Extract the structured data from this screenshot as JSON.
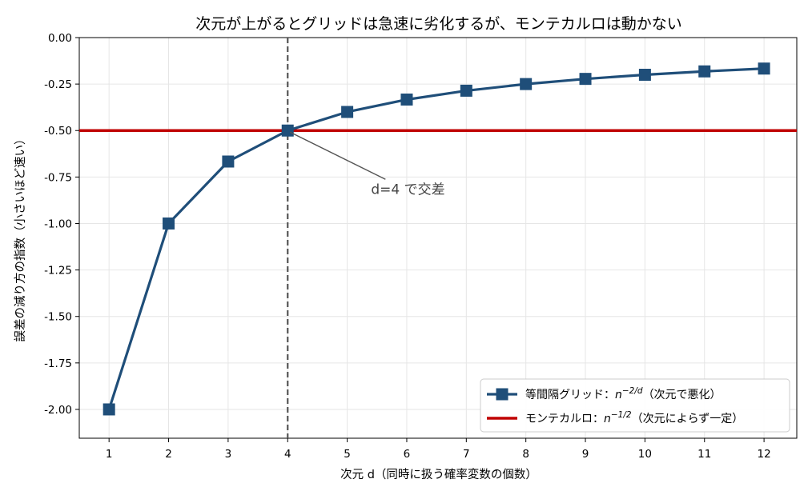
{
  "chart_data": {
    "type": "line",
    "title": "次元が上がるとグリッドは急速に劣化するが、モンテカルロは動かない",
    "xlabel": "次元 d（同時に扱う確率変数の個数）",
    "ylabel": "誤差の減り方の指数（小さいほど速い）",
    "x": [
      1,
      2,
      3,
      4,
      5,
      6,
      7,
      8,
      9,
      10,
      11,
      12
    ],
    "x_tick_labels": [
      "1",
      "2",
      "3",
      "4",
      "5",
      "6",
      "7",
      "8",
      "9",
      "10",
      "11",
      "12"
    ],
    "y_tick_values": [
      0.0,
      -0.25,
      -0.5,
      -0.75,
      -1.0,
      -1.25,
      -1.5,
      -1.75,
      -2.0
    ],
    "y_tick_labels": [
      "0.00",
      "-0.25",
      "-0.50",
      "-0.75",
      "-1.00",
      "-1.25",
      "-1.50",
      "-1.75",
      "-2.00"
    ],
    "xlim": [
      0.5,
      12.55
    ],
    "ylim": [
      -2.155,
      0.0
    ],
    "grid": true,
    "legend_position": "lower right",
    "series": [
      {
        "name_prefix": "等間隔グリッド：",
        "name_math": "n",
        "name_exp": "−2/d",
        "name_suffix": "（次元で悪化）",
        "color": "#1f4e79",
        "marker": "square",
        "values": [
          -2.0,
          -1.0,
          -0.6667,
          -0.5,
          -0.4,
          -0.3333,
          -0.2857,
          -0.25,
          -0.2222,
          -0.2,
          -0.1818,
          -0.1667
        ]
      },
      {
        "name_prefix": "モンテカルロ：",
        "name_math": "n",
        "name_exp": "−1/2",
        "name_suffix": "（次元によらず一定）",
        "color": "#c00000",
        "type": "hline",
        "value": -0.5
      }
    ],
    "vline": {
      "x": 4,
      "color": "#555555",
      "style": "dashed"
    },
    "annotation": {
      "text": "d=4 で交差",
      "point": [
        4,
        -0.5
      ],
      "text_at": [
        5.4,
        -0.84
      ]
    }
  }
}
